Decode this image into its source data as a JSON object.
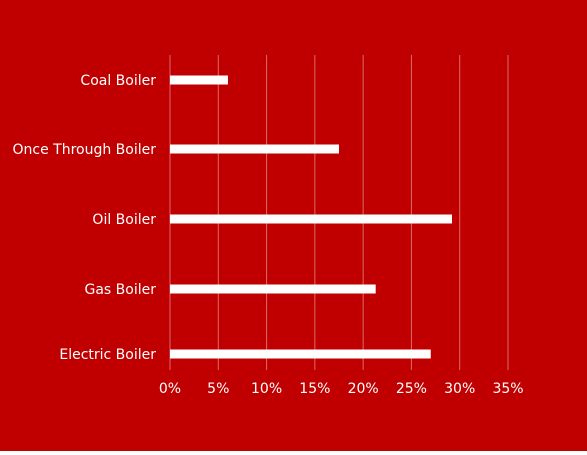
{
  "colors": {
    "background": "#C00000",
    "bar": "#FFFFFF",
    "gridline": "#D96A6A",
    "text": "#FFFFFF"
  },
  "chart_data": {
    "type": "bar",
    "orientation": "horizontal",
    "categories": [
      "Coal Boiler",
      "Once Through Boiler",
      "Oil Boiler",
      "Gas Boiler",
      "Electric Boiler"
    ],
    "values": [
      6.0,
      17.5,
      29.2,
      21.3,
      27.0
    ],
    "value_unit": "%",
    "xlim": [
      0,
      35
    ],
    "x_ticks": [
      0,
      5,
      10,
      15,
      20,
      25,
      30,
      35
    ],
    "x_tick_labels": [
      "0%",
      "5%",
      "10%",
      "15%",
      "20%",
      "25%",
      "30%",
      "35%"
    ],
    "title": "",
    "xlabel": "",
    "ylabel": "",
    "grid": "vertical",
    "legend": "none"
  }
}
